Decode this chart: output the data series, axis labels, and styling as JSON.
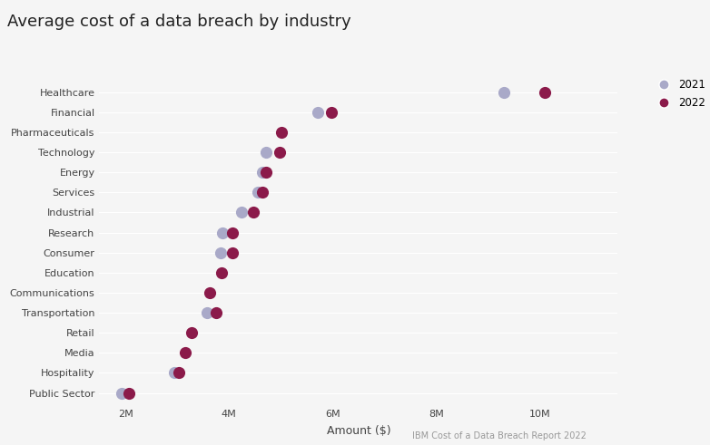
{
  "title": "Average cost of a data breach by industry",
  "xlabel": "Amount ($)",
  "source": "IBM Cost of a Data Breach Report 2022",
  "industries": [
    "Healthcare",
    "Financial",
    "Pharmaceuticals",
    "Technology",
    "Energy",
    "Services",
    "Industrial",
    "Research",
    "Consumer",
    "Education",
    "Communications",
    "Transportation",
    "Retail",
    "Media",
    "Hospitality",
    "Public Sector"
  ],
  "values_2021": [
    9.3,
    5.72,
    null,
    4.72,
    4.65,
    4.55,
    4.24,
    3.88,
    3.84,
    null,
    null,
    3.58,
    null,
    null,
    2.94,
    1.93
  ],
  "values_2022": [
    10.1,
    5.97,
    5.01,
    4.97,
    4.72,
    4.65,
    4.47,
    4.07,
    4.06,
    3.86,
    3.62,
    3.75,
    3.28,
    3.15,
    3.03,
    2.07
  ],
  "color_2021": "#a9a9c8",
  "color_2022": "#8b1a4a",
  "marker_size": 90,
  "background_color": "#f5f5f5",
  "grid_color": "#ffffff",
  "xlim": [
    1.5,
    11.5
  ],
  "xticks": [
    2,
    4,
    6,
    8,
    10
  ],
  "xtick_labels": [
    "2M",
    "4M",
    "6M",
    "8M",
    "10M"
  ],
  "title_fontsize": 13,
  "label_fontsize": 8,
  "tick_fontsize": 8
}
